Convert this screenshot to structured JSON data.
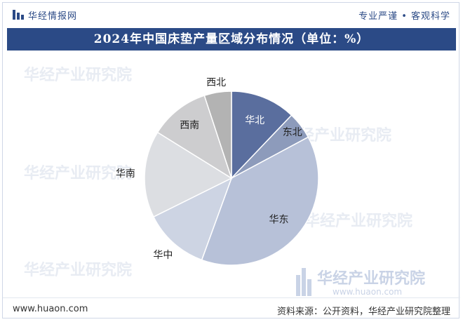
{
  "header": {
    "brand": "华经情报网",
    "tagline": "专业严谨 • 客观科学"
  },
  "title": "2024年中国床垫产量区域分布情况（单位：%）",
  "watermark": {
    "text": "华经产业研究院",
    "url": "www.huaon.com"
  },
  "footer": {
    "url": "www.huaon.com",
    "source": "资料来源：公开资料，华经产业研究院整理"
  },
  "colors": {
    "brand": "#2b4a86",
    "slice_north_china": "#5a6e9e",
    "slice_northeast": "#8d9bbb",
    "slice_east_china": "#b7c1d8",
    "slice_central_china": "#cdd4e3",
    "slice_south_china": "#dcdee2",
    "slice_southwest": "#cdcdcf",
    "slice_northwest": "#b3b3b3"
  },
  "chart_data": {
    "type": "pie",
    "start_angle": 0,
    "direction": "clockwise",
    "categories": [
      "华北",
      "东北",
      "华东",
      "华中",
      "华南",
      "西南",
      "西北"
    ],
    "values": [
      12,
      5,
      38,
      12,
      16,
      11,
      5
    ],
    "label_unit": "%",
    "legend": "none"
  }
}
